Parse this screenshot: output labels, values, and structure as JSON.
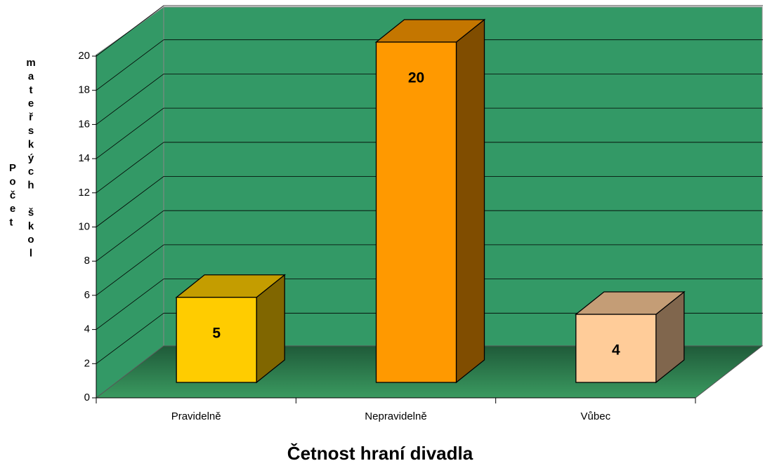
{
  "chart_data": {
    "type": "bar3d",
    "x_label": "Četnost hraní divadla",
    "y_label": "Počet mateřských škol",
    "categories": [
      "Pravidelně",
      "Nepravidelně",
      "Vůbec"
    ],
    "values": [
      5,
      20,
      4
    ],
    "colors": [
      "#FFCC00",
      "#FF9900",
      "#FFCC99"
    ],
    "ylim": [
      0,
      20
    ],
    "yticks": [
      0,
      2,
      4,
      6,
      8,
      10,
      12,
      14,
      16,
      18,
      20
    ],
    "grid": true
  }
}
